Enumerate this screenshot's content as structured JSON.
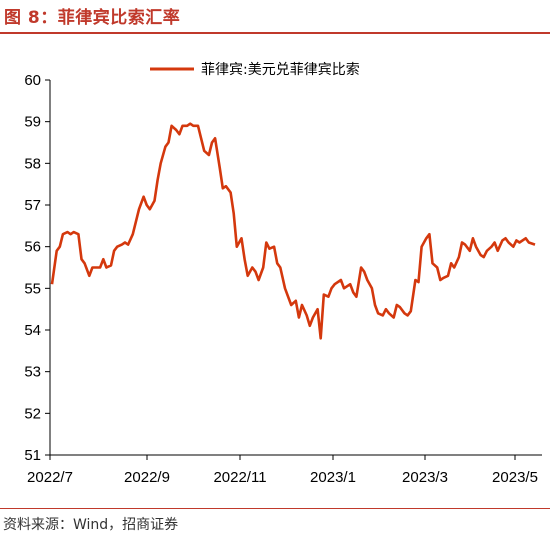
{
  "header": {
    "figure_title": "图 8：菲律宾比索汇率"
  },
  "footer": {
    "source": "资料来源：Wind，招商证券"
  },
  "colors": {
    "accent": "#c0392b",
    "series": "#d4380d"
  },
  "chart_data": {
    "type": "line",
    "title": "",
    "xlabel": "",
    "ylabel": "",
    "ylim": [
      51,
      60
    ],
    "yticks": [
      51,
      52,
      53,
      54,
      55,
      56,
      57,
      58,
      59,
      60
    ],
    "xtick_labels": [
      "2022/7",
      "2022/9",
      "2022/11",
      "2023/1",
      "2023/3",
      "2023/5"
    ],
    "legend_position": "top-center",
    "grid": false,
    "series": [
      {
        "name": "菲律宾:美元兑菲律宾比索",
        "x": [
          "2022-07-01",
          "2022-07-04",
          "2022-07-06",
          "2022-07-08",
          "2022-07-11",
          "2022-07-13",
          "2022-07-15",
          "2022-07-18",
          "2022-07-20",
          "2022-07-22",
          "2022-07-25",
          "2022-07-27",
          "2022-07-29",
          "2022-08-01",
          "2022-08-03",
          "2022-08-05",
          "2022-08-08",
          "2022-08-10",
          "2022-08-12",
          "2022-08-15",
          "2022-08-17",
          "2022-08-19",
          "2022-08-22",
          "2022-08-24",
          "2022-08-26",
          "2022-08-29",
          "2022-08-31",
          "2022-09-02",
          "2022-09-05",
          "2022-09-07",
          "2022-09-09",
          "2022-09-12",
          "2022-09-14",
          "2022-09-16",
          "2022-09-19",
          "2022-09-21",
          "2022-09-23",
          "2022-09-26",
          "2022-09-28",
          "2022-09-30",
          "2022-10-03",
          "2022-10-05",
          "2022-10-07",
          "2022-10-10",
          "2022-10-12",
          "2022-10-14",
          "2022-10-17",
          "2022-10-19",
          "2022-10-21",
          "2022-10-24",
          "2022-10-26",
          "2022-10-28",
          "2022-10-31",
          "2022-11-02",
          "2022-11-04",
          "2022-11-07",
          "2022-11-09",
          "2022-11-11",
          "2022-11-14",
          "2022-11-16",
          "2022-11-18",
          "2022-11-21",
          "2022-11-23",
          "2022-11-25",
          "2022-11-28",
          "2022-11-30",
          "2022-12-02",
          "2022-12-05",
          "2022-12-07",
          "2022-12-09",
          "2022-12-12",
          "2022-12-14",
          "2022-12-16",
          "2022-12-19",
          "2022-12-21",
          "2022-12-23",
          "2022-12-26",
          "2022-12-28",
          "2022-12-30",
          "2023-01-03",
          "2023-01-05",
          "2023-01-09",
          "2023-01-11",
          "2023-01-13",
          "2023-01-16",
          "2023-01-18",
          "2023-01-20",
          "2023-01-23",
          "2023-01-25",
          "2023-01-27",
          "2023-01-30",
          "2023-02-01",
          "2023-02-03",
          "2023-02-06",
          "2023-02-08",
          "2023-02-10",
          "2023-02-13",
          "2023-02-15",
          "2023-02-17",
          "2023-02-20",
          "2023-02-22",
          "2023-02-24",
          "2023-02-27",
          "2023-03-01",
          "2023-03-03",
          "2023-03-06",
          "2023-03-08",
          "2023-03-10",
          "2023-03-13",
          "2023-03-15",
          "2023-03-17",
          "2023-03-20",
          "2023-03-22",
          "2023-03-24",
          "2023-03-27",
          "2023-03-29",
          "2023-03-31",
          "2023-04-03",
          "2023-04-05",
          "2023-04-07",
          "2023-04-10",
          "2023-04-12",
          "2023-04-14",
          "2023-04-17",
          "2023-04-19",
          "2023-04-21",
          "2023-04-24",
          "2023-04-26",
          "2023-04-28",
          "2023-05-02",
          "2023-05-04",
          "2023-05-08"
        ],
        "y": [
          55.1,
          55.9,
          56.0,
          56.3,
          56.35,
          56.3,
          56.35,
          56.3,
          55.7,
          55.6,
          55.3,
          55.5,
          55.5,
          55.5,
          55.7,
          55.5,
          55.55,
          55.9,
          56.0,
          56.05,
          56.1,
          56.05,
          56.3,
          56.6,
          56.9,
          57.2,
          57.0,
          56.9,
          57.1,
          57.6,
          58.0,
          58.4,
          58.5,
          58.9,
          58.8,
          58.7,
          58.9,
          58.9,
          58.95,
          58.9,
          58.9,
          58.6,
          58.3,
          58.2,
          58.5,
          58.6,
          57.9,
          57.4,
          57.45,
          57.3,
          56.8,
          56.0,
          56.2,
          55.7,
          55.3,
          55.5,
          55.4,
          55.2,
          55.5,
          56.1,
          55.95,
          56.0,
          55.6,
          55.5,
          55.0,
          54.8,
          54.6,
          54.7,
          54.3,
          54.6,
          54.35,
          54.1,
          54.3,
          54.5,
          53.8,
          54.85,
          54.8,
          55.0,
          55.1,
          55.2,
          55.0,
          55.1,
          54.9,
          54.8,
          55.5,
          55.4,
          55.2,
          55.0,
          54.6,
          54.4,
          54.35,
          54.5,
          54.4,
          54.3,
          54.6,
          54.55,
          54.4,
          54.35,
          54.45,
          55.2,
          55.15,
          56.0,
          56.2,
          56.3,
          55.6,
          55.5,
          55.2,
          55.25,
          55.3,
          55.6,
          55.5,
          55.75,
          56.1,
          56.05,
          55.9,
          56.2,
          56.0,
          55.8,
          55.75,
          55.9,
          56.0,
          56.1,
          55.9,
          56.15,
          56.2,
          56.1,
          56.0,
          56.15,
          56.1,
          56.2,
          56.1,
          56.05
        ]
      }
    ]
  }
}
